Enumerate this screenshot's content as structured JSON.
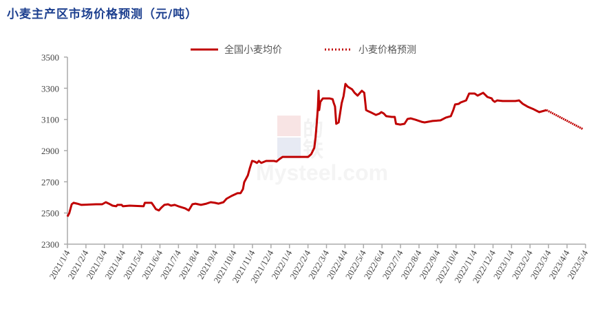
{
  "chart_data": {
    "type": "line",
    "title": "小麦主产区市场价格预测（元/吨）",
    "xlabel": "",
    "ylabel": "",
    "ylim": [
      2300,
      3500
    ],
    "yticks": [
      2300,
      2500,
      2700,
      2900,
      3100,
      3300,
      3500
    ],
    "xlim": [
      "2021-01-04",
      "2023-05-04"
    ],
    "xtick_labels": [
      "2021/1/4",
      "2021/2/4",
      "2021/3/4",
      "2021/4/4",
      "2021/5/4",
      "2021/6/4",
      "2021/7/4",
      "2021/8/4",
      "2021/9/4",
      "2021/10/4",
      "2021/11/4",
      "2021/12/4",
      "2022/1/4",
      "2022/2/4",
      "2022/3/4",
      "2022/4/4",
      "2022/5/4",
      "2022/6/4",
      "2022/7/4",
      "2022/8/4",
      "2022/9/4",
      "2022/10/4",
      "2022/11/4",
      "2022/12/4",
      "2023/1/4",
      "2023/2/4",
      "2023/3/4",
      "2023/4/4",
      "2023/5/4"
    ],
    "grid": false,
    "legend_placement": "top-center",
    "watermark": "我的钢铁 Mysteel.com",
    "series": [
      {
        "name": "全国小麦均价",
        "style": "solid",
        "color": "#c00000",
        "points": [
          [
            "2021-01-04",
            2477
          ],
          [
            "2021-01-07",
            2499
          ],
          [
            "2021-01-11",
            2556
          ],
          [
            "2021-01-14",
            2565
          ],
          [
            "2021-01-20",
            2560
          ],
          [
            "2021-01-27",
            2552
          ],
          [
            "2021-02-20",
            2556
          ],
          [
            "2021-03-02",
            2556
          ],
          [
            "2021-03-08",
            2569
          ],
          [
            "2021-03-13",
            2560
          ],
          [
            "2021-03-19",
            2547
          ],
          [
            "2021-03-25",
            2543
          ],
          [
            "2021-03-27",
            2552
          ],
          [
            "2021-04-03",
            2552
          ],
          [
            "2021-04-05",
            2543
          ],
          [
            "2021-04-16",
            2547
          ],
          [
            "2021-05-09",
            2543
          ],
          [
            "2021-05-11",
            2565
          ],
          [
            "2021-05-22",
            2565
          ],
          [
            "2021-05-26",
            2543
          ],
          [
            "2021-05-29",
            2525
          ],
          [
            "2021-06-03",
            2516
          ],
          [
            "2021-06-07",
            2534
          ],
          [
            "2021-06-12",
            2552
          ],
          [
            "2021-06-18",
            2556
          ],
          [
            "2021-06-23",
            2547
          ],
          [
            "2021-06-29",
            2552
          ],
          [
            "2021-07-05",
            2543
          ],
          [
            "2021-07-16",
            2530
          ],
          [
            "2021-07-22",
            2516
          ],
          [
            "2021-07-28",
            2556
          ],
          [
            "2021-08-02",
            2560
          ],
          [
            "2021-08-11",
            2552
          ],
          [
            "2021-08-20",
            2560
          ],
          [
            "2021-08-27",
            2569
          ],
          [
            "2021-09-03",
            2565
          ],
          [
            "2021-09-09",
            2560
          ],
          [
            "2021-09-17",
            2569
          ],
          [
            "2021-09-22",
            2591
          ],
          [
            "2021-09-30",
            2609
          ],
          [
            "2021-10-10",
            2627
          ],
          [
            "2021-10-15",
            2627
          ],
          [
            "2021-10-19",
            2653
          ],
          [
            "2021-10-21",
            2697
          ],
          [
            "2021-10-27",
            2741
          ],
          [
            "2021-10-30",
            2785
          ],
          [
            "2021-11-03",
            2834
          ],
          [
            "2021-11-07",
            2830
          ],
          [
            "2021-11-11",
            2821
          ],
          [
            "2021-11-14",
            2834
          ],
          [
            "2021-11-18",
            2821
          ],
          [
            "2021-11-26",
            2834
          ],
          [
            "2021-12-09",
            2834
          ],
          [
            "2021-12-13",
            2830
          ],
          [
            "2021-12-17",
            2843
          ],
          [
            "2021-12-23",
            2860
          ],
          [
            "2022-01-15",
            2860
          ],
          [
            "2022-02-03",
            2860
          ],
          [
            "2022-02-08",
            2878
          ],
          [
            "2022-02-13",
            2918
          ],
          [
            "2022-02-15",
            2984
          ],
          [
            "2022-02-17",
            3072
          ],
          [
            "2022-02-19",
            3183
          ],
          [
            "2022-02-20",
            3284
          ],
          [
            "2022-02-21",
            3160
          ],
          [
            "2022-02-23",
            3213
          ],
          [
            "2022-02-27",
            3235
          ],
          [
            "2022-03-10",
            3235
          ],
          [
            "2022-03-15",
            3230
          ],
          [
            "2022-03-17",
            3205
          ],
          [
            "2022-03-19",
            3183
          ],
          [
            "2022-03-21",
            3072
          ],
          [
            "2022-03-25",
            3081
          ],
          [
            "2022-03-30",
            3205
          ],
          [
            "2022-04-02",
            3249
          ],
          [
            "2022-04-05",
            3328
          ],
          [
            "2022-04-09",
            3310
          ],
          [
            "2022-04-16",
            3293
          ],
          [
            "2022-04-20",
            3271
          ],
          [
            "2022-04-25",
            3253
          ],
          [
            "2022-04-28",
            3266
          ],
          [
            "2022-05-02",
            3284
          ],
          [
            "2022-05-06",
            3271
          ],
          [
            "2022-05-09",
            3160
          ],
          [
            "2022-05-13",
            3152
          ],
          [
            "2022-05-18",
            3143
          ],
          [
            "2022-05-25",
            3129
          ],
          [
            "2022-05-31",
            3138
          ],
          [
            "2022-06-03",
            3147
          ],
          [
            "2022-06-07",
            3138
          ],
          [
            "2022-06-11",
            3121
          ],
          [
            "2022-06-20",
            3116
          ],
          [
            "2022-06-25",
            3116
          ],
          [
            "2022-06-27",
            3072
          ],
          [
            "2022-07-04",
            3067
          ],
          [
            "2022-07-11",
            3072
          ],
          [
            "2022-07-16",
            3103
          ],
          [
            "2022-07-21",
            3107
          ],
          [
            "2022-07-29",
            3098
          ],
          [
            "2022-08-08",
            3085
          ],
          [
            "2022-08-13",
            3081
          ],
          [
            "2022-08-26",
            3090
          ],
          [
            "2022-09-08",
            3094
          ],
          [
            "2022-09-17",
            3112
          ],
          [
            "2022-09-25",
            3121
          ],
          [
            "2022-09-29",
            3160
          ],
          [
            "2022-10-02",
            3196
          ],
          [
            "2022-10-08",
            3200
          ],
          [
            "2022-10-11",
            3209
          ],
          [
            "2022-10-20",
            3222
          ],
          [
            "2022-10-25",
            3266
          ],
          [
            "2022-11-03",
            3266
          ],
          [
            "2022-11-08",
            3253
          ],
          [
            "2022-11-17",
            3271
          ],
          [
            "2022-11-24",
            3244
          ],
          [
            "2022-12-01",
            3235
          ],
          [
            "2022-12-03",
            3222
          ],
          [
            "2022-12-06",
            3213
          ],
          [
            "2022-12-10",
            3222
          ],
          [
            "2022-12-19",
            3218
          ],
          [
            "2023-01-09",
            3218
          ],
          [
            "2023-01-15",
            3222
          ],
          [
            "2023-01-21",
            3200
          ],
          [
            "2023-01-29",
            3182
          ],
          [
            "2023-02-08",
            3165
          ],
          [
            "2023-02-17",
            3147
          ],
          [
            "2023-03-01",
            3160
          ]
        ]
      },
      {
        "name": "小麦价格预测",
        "style": "dotted",
        "color": "#c00000",
        "points": [
          [
            "2023-03-01",
            3160
          ],
          [
            "2023-04-30",
            3037
          ]
        ]
      }
    ]
  }
}
